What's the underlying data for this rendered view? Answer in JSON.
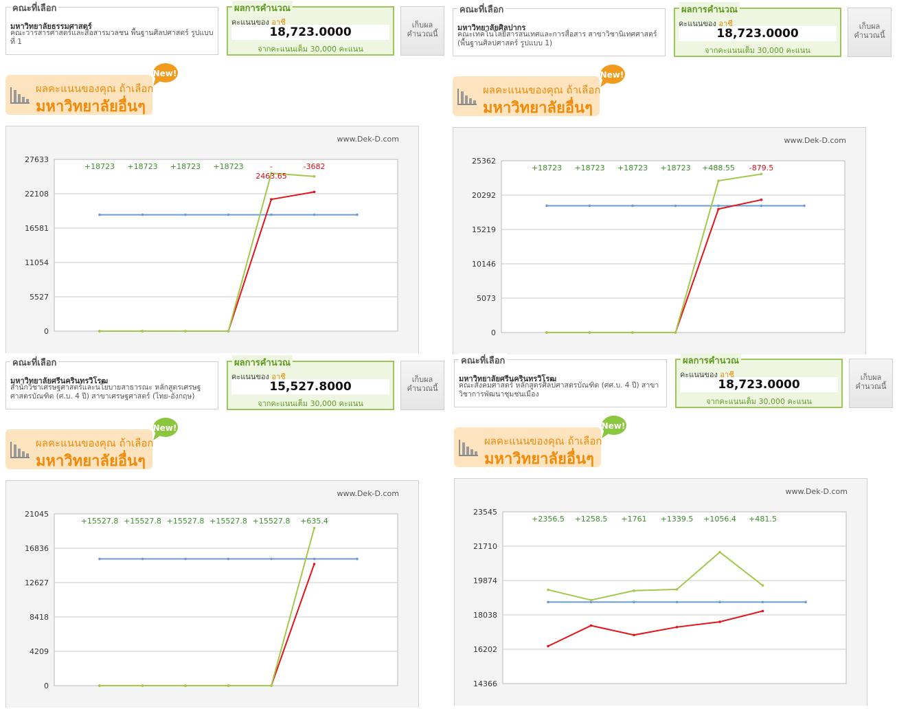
{
  "labels": {
    "faculty_legend": "คณะที่เลือก",
    "result_legend": "ผลการคำนวณ",
    "score_of": "คะแนนของ",
    "user_name": "อาชี",
    "full_score": "จากคะแนนเต็ม 30,000 คะแนน",
    "keep_button": "เก็บผล คำนวณนี้",
    "banner_line1": "ผลคะแนนของคุณ ถ้าเลือก",
    "banner_line2": "มหาวิทยาลัยอื่นๆ",
    "new_badge": "New!",
    "website": "www.Dek-D.com"
  },
  "colors": {
    "blue": "#6b9bd2",
    "red": "#e3141a",
    "green": "#a5c74b",
    "label_green": "#3b8f2b",
    "label_red": "#d8101a",
    "grid": "#c8c8c8"
  },
  "panels": [
    {
      "university": "มหาวิทยาลัยธรรมศาสตร์",
      "faculty": "คณะวารสารศาสตร์และสื่อสารมวลชน พื้นฐานศิลปศาสตร์ รูปแบบที่ 1",
      "score": "18,723.0000"
    },
    {
      "university": "มหาวิทยาลัยศิลปากร",
      "faculty": "คณะเทคโนโลยีสารสนเทศและการสื่อสาร สาขาวิชานิเทศศาสตร์ (พื้นฐานศิลปศาสตร์ รูปแบบ 1)",
      "score": "18,723.0000"
    },
    {
      "university": "มหาวิทยาลัยศรีนครินทรวิโรฒ",
      "faculty": "สำนักวิชาเศรษฐศาสตร์และนโยบายสาธารณะ หลักสูตรเศรษฐศาสตรบัณฑิต (ศ.บ. 4 ปี) สาขาเศรษฐศาสตร์ (ไทย-อังกฤษ)",
      "score": "15,527.8000"
    },
    {
      "university": "มหาวิทยาลัยศรีนครินทรวิโรฒ",
      "faculty": "คณะสังคมศาสตร์ หลักสูตรศิลปศาสตรบัณฑิต (ศศ.บ. 4 ปี) สาขาวิชาการพัฒนาชุมชนเมือง",
      "score": "18,723.0000"
    }
  ],
  "chart_data": [
    {
      "type": "line",
      "yticks": [
        "27633",
        "22108",
        "16581",
        "11054",
        "5527",
        "0"
      ],
      "ylim": [
        0,
        27633
      ],
      "x": [
        1,
        2,
        3,
        4,
        5,
        6,
        7
      ],
      "series": [
        {
          "color": "#6b9bd2",
          "values": [
            18723,
            18723,
            18723,
            18723,
            18723,
            18723,
            18723
          ]
        },
        {
          "color": "#e3141a",
          "values": [
            0,
            0,
            0,
            0,
            21200,
            22400,
            null
          ]
        },
        {
          "color": "#a5c74b",
          "values": [
            0,
            0,
            0,
            0,
            25400,
            24900,
            null
          ]
        }
      ],
      "annotations": [
        {
          "text": "+18723",
          "x": 1,
          "color": "green"
        },
        {
          "text": "+18723",
          "x": 2,
          "color": "green"
        },
        {
          "text": "+18723",
          "x": 3,
          "color": "green"
        },
        {
          "text": "+18723",
          "x": 4,
          "color": "green"
        },
        {
          "text": "-",
          "x": 5,
          "color": "red"
        },
        {
          "text": "2463.65",
          "x": 5,
          "color": "red",
          "lower": true
        },
        {
          "text": "-3682",
          "x": 6,
          "color": "red"
        }
      ]
    },
    {
      "type": "line",
      "yticks": [
        "25362",
        "20292",
        "15219",
        "10146",
        "5073",
        "0"
      ],
      "ylim": [
        0,
        25362
      ],
      "x": [
        1,
        2,
        3,
        4,
        5,
        6,
        7
      ],
      "series": [
        {
          "color": "#6b9bd2",
          "values": [
            18723,
            18723,
            18723,
            18723,
            18723,
            18723,
            18723
          ]
        },
        {
          "color": "#e3141a",
          "values": [
            0,
            0,
            0,
            0,
            18235,
            19600,
            null
          ]
        },
        {
          "color": "#a5c74b",
          "values": [
            0,
            0,
            0,
            0,
            22400,
            23400,
            null
          ]
        }
      ],
      "annotations": [
        {
          "text": "+18723",
          "x": 1,
          "color": "green"
        },
        {
          "text": "+18723",
          "x": 2,
          "color": "green"
        },
        {
          "text": "+18723",
          "x": 3,
          "color": "green"
        },
        {
          "text": "+18723",
          "x": 4,
          "color": "green"
        },
        {
          "text": "+488.55",
          "x": 5,
          "color": "green"
        },
        {
          "text": "-879.5",
          "x": 6,
          "color": "red"
        }
      ]
    },
    {
      "type": "line",
      "yticks": [
        "21045",
        "16836",
        "12627",
        "8418",
        "4209",
        "0"
      ],
      "ylim": [
        0,
        21045
      ],
      "x": [
        1,
        2,
        3,
        4,
        5,
        6,
        7
      ],
      "series": [
        {
          "color": "#6b9bd2",
          "values": [
            15527.8,
            15527.8,
            15527.8,
            15527.8,
            15527.8,
            15527.8,
            15527.8
          ]
        },
        {
          "color": "#e3141a",
          "values": [
            0,
            0,
            0,
            0,
            0,
            14900,
            null
          ]
        },
        {
          "color": "#a5c74b",
          "values": [
            0,
            0,
            0,
            0,
            0,
            19300,
            null
          ]
        }
      ],
      "annotations": [
        {
          "text": "+15527.8",
          "x": 1,
          "color": "green"
        },
        {
          "text": "+15527.8",
          "x": 2,
          "color": "green"
        },
        {
          "text": "+15527.8",
          "x": 3,
          "color": "green"
        },
        {
          "text": "+15527.8",
          "x": 4,
          "color": "green"
        },
        {
          "text": "+15527.8",
          "x": 5,
          "color": "green"
        },
        {
          "text": "+635.4",
          "x": 6,
          "color": "green"
        }
      ]
    },
    {
      "type": "line",
      "yticks": [
        "23545",
        "21710",
        "19874",
        "18038",
        "16202",
        "14366"
      ],
      "ylim": [
        14366,
        23545
      ],
      "x": [
        1,
        2,
        3,
        4,
        5,
        6,
        7
      ],
      "series": [
        {
          "color": "#6b9bd2",
          "values": [
            18723,
            18723,
            18723,
            18723,
            18723,
            18723,
            18723
          ]
        },
        {
          "color": "#e3141a",
          "values": [
            16366,
            17465,
            16962,
            17384,
            17667,
            18242,
            null
          ]
        },
        {
          "color": "#a5c74b",
          "values": [
            19380,
            18830,
            19330,
            19400,
            21390,
            19610,
            null
          ]
        }
      ],
      "annotations": [
        {
          "text": "+2356.5",
          "x": 1,
          "color": "green"
        },
        {
          "text": "+1258.5",
          "x": 2,
          "color": "green"
        },
        {
          "text": "+1761",
          "x": 3,
          "color": "green"
        },
        {
          "text": "+1339.5",
          "x": 4,
          "color": "green"
        },
        {
          "text": "+1056.4",
          "x": 5,
          "color": "green"
        },
        {
          "text": "+481.5",
          "x": 6,
          "color": "green"
        }
      ]
    }
  ]
}
